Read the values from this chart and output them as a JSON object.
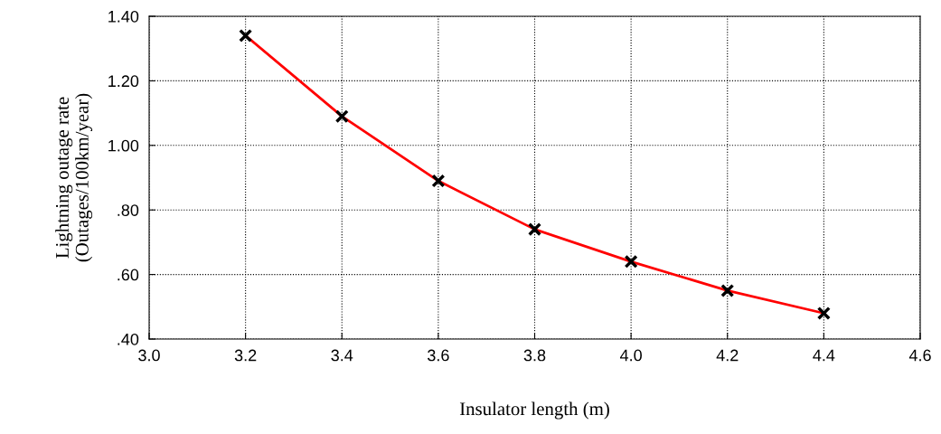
{
  "chart_data": {
    "type": "line",
    "xlabel": "Insulator length (m)",
    "ylabel": "Lightning outage rate\n(Outages/100km/year)",
    "x": [
      3.2,
      3.4,
      3.6,
      3.8,
      4.0,
      4.2,
      4.4
    ],
    "series": [
      {
        "color": "#ff0000",
        "marker": "none",
        "values": [
          1.34,
          1.09,
          0.89,
          0.74,
          0.64,
          0.55,
          0.48
        ]
      },
      {
        "type": "scatter",
        "color": "#000000",
        "marker": "cross",
        "values": [
          1.34,
          1.09,
          0.89,
          0.74,
          0.64,
          0.55,
          0.48
        ]
      }
    ],
    "xlim": [
      3.0,
      4.6
    ],
    "xticks": [
      {
        "value": 3.0,
        "label": "3.0"
      },
      3.2,
      3.4,
      3.6,
      3.8,
      {
        "value": 4.0,
        "label": "4.0"
      },
      4.2,
      4.4,
      4.6
    ],
    "ylim": [
      0.4,
      1.4
    ],
    "yticks": [
      {
        "value": 0.4,
        "label": ".40"
      },
      {
        "value": 0.6,
        "label": ".60"
      },
      {
        "value": 0.8,
        "label": ".80"
      },
      {
        "value": 1.0,
        "label": "1.00"
      },
      {
        "value": 1.2,
        "label": "1.20"
      },
      {
        "value": 1.4,
        "label": "1.40"
      }
    ],
    "grid": true
  }
}
